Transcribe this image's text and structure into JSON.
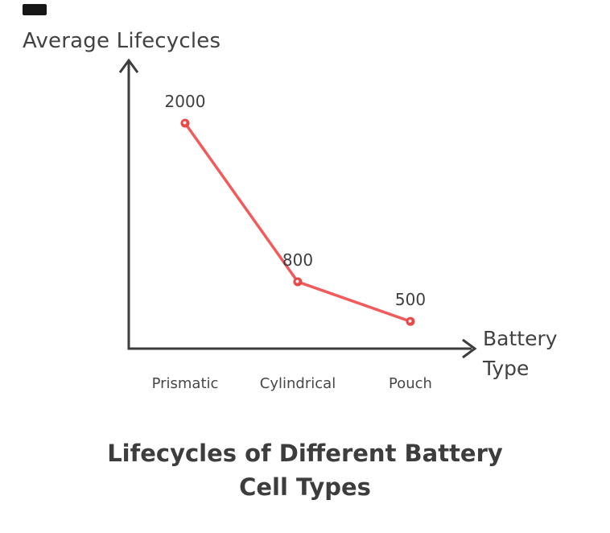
{
  "colors": {
    "accent_red": "#f15b5b",
    "marker_red": "#e94848",
    "marker_center": "#fdeaea",
    "axis": "#3d3d3d",
    "text": "#424242",
    "title": "#3d3d3d",
    "corner_mark": "#171717"
  },
  "chart_data": {
    "type": "line",
    "title": "Lifecycles of Different Battery Cell Types",
    "title_lines": [
      "Lifecycles of Different Battery",
      "Cell Types"
    ],
    "xlabel": "Battery Type",
    "xlabel_lines": [
      "Battery",
      "Type"
    ],
    "ylabel": "Average Lifecycles",
    "categories": [
      "Prismatic",
      "Cylindrical",
      "Pouch"
    ],
    "values": [
      2000,
      800,
      500
    ],
    "value_labels": [
      "2000",
      "800",
      "500"
    ],
    "series": [
      {
        "name": "Average Lifecycles",
        "values": [
          2000,
          800,
          500
        ]
      }
    ],
    "grid": false,
    "legend": "none",
    "marker_style": "ring"
  }
}
